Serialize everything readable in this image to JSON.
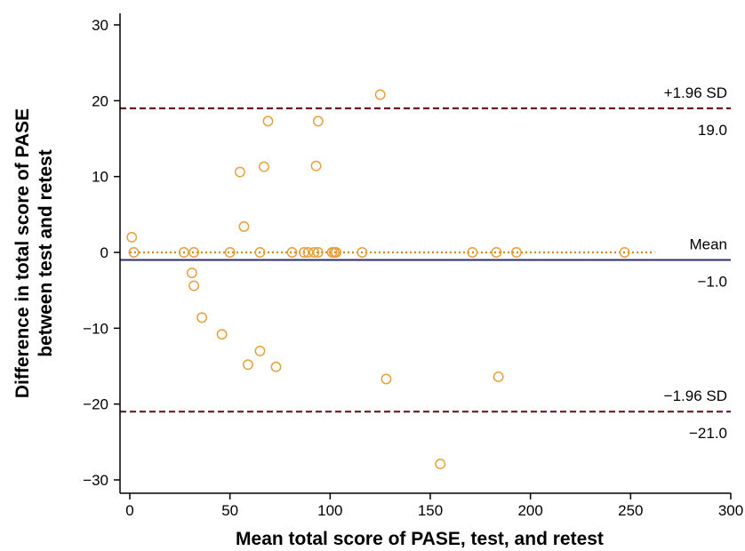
{
  "chart_data": {
    "type": "scatter",
    "title": "",
    "xlabel": "Mean total score of PASE, test, and retest",
    "ylabel_lines": [
      "Difference in total score of PASE",
      "between test and retest"
    ],
    "xlim": [
      0,
      300
    ],
    "ylim": [
      -30,
      30
    ],
    "x_ticks": [
      0,
      50,
      100,
      150,
      200,
      250,
      300
    ],
    "y_ticks": [
      -30,
      -20,
      -10,
      0,
      10,
      20,
      30
    ],
    "x_tick_labels": [
      "0",
      "50",
      "100",
      "150",
      "200",
      "250",
      "300"
    ],
    "y_tick_labels": [
      "−30",
      "−20",
      "−10",
      "0",
      "10",
      "20",
      "30"
    ],
    "grid": false,
    "points": [
      {
        "x": 1,
        "y": 2
      },
      {
        "x": 2,
        "y": 0
      },
      {
        "x": 27,
        "y": 0
      },
      {
        "x": 31,
        "y": -2.7
      },
      {
        "x": 32,
        "y": 0
      },
      {
        "x": 32,
        "y": -4.4
      },
      {
        "x": 36,
        "y": -8.6
      },
      {
        "x": 46,
        "y": -10.8
      },
      {
        "x": 50,
        "y": 0
      },
      {
        "x": 55,
        "y": 10.6
      },
      {
        "x": 57,
        "y": 3.4
      },
      {
        "x": 59,
        "y": -14.8
      },
      {
        "x": 65,
        "y": 0
      },
      {
        "x": 65,
        "y": -13
      },
      {
        "x": 67,
        "y": 11.3
      },
      {
        "x": 69,
        "y": 17.3
      },
      {
        "x": 73,
        "y": -15.1
      },
      {
        "x": 81,
        "y": 0
      },
      {
        "x": 87,
        "y": 0
      },
      {
        "x": 89,
        "y": 0
      },
      {
        "x": 92,
        "y": 0
      },
      {
        "x": 93,
        "y": 11.4
      },
      {
        "x": 94,
        "y": 17.3
      },
      {
        "x": 94,
        "y": 0
      },
      {
        "x": 101,
        "y": 0
      },
      {
        "x": 102,
        "y": 0
      },
      {
        "x": 103,
        "y": 0
      },
      {
        "x": 116,
        "y": 0
      },
      {
        "x": 125,
        "y": 20.8
      },
      {
        "x": 128,
        "y": -16.7
      },
      {
        "x": 155,
        "y": -27.9
      },
      {
        "x": 171,
        "y": 0
      },
      {
        "x": 183,
        "y": 0
      },
      {
        "x": 184,
        "y": -16.4
      },
      {
        "x": 193,
        "y": 0
      },
      {
        "x": 247,
        "y": 0
      }
    ],
    "reference_lines": [
      {
        "label": "+1.96 SD",
        "value_label": "19.0",
        "y": 19.0,
        "style": "dashed",
        "color": "#6b1a1f"
      },
      {
        "label": "Mean",
        "value_label": "−1.0",
        "y": -1.0,
        "style": "solid",
        "color": "#2b2d6e"
      },
      {
        "label": "−1.96 SD",
        "value_label": "−21.0",
        "y": -21.0,
        "style": "dashed",
        "color": "#6b1a1f"
      }
    ],
    "zero_line": {
      "y": 0,
      "x_end": 262,
      "style": "dotted",
      "color": "#d98a1a"
    },
    "colors": {
      "marker": "#e8a03c",
      "axis": "#000000"
    }
  }
}
